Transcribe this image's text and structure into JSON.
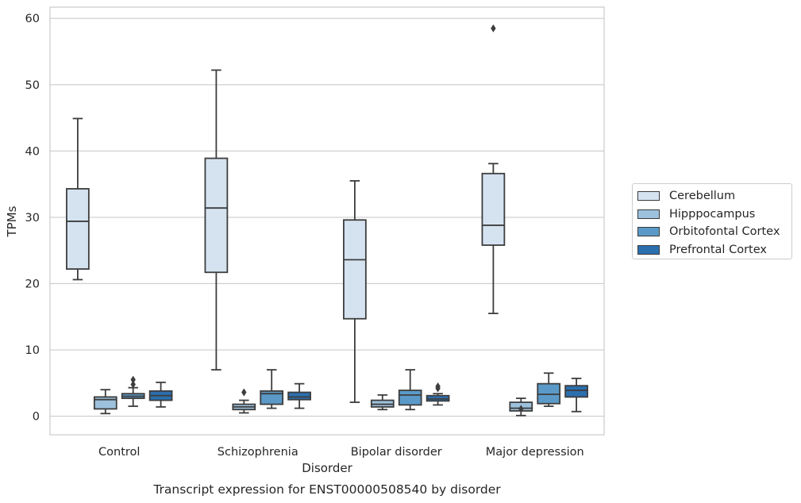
{
  "chart_data": {
    "type": "box",
    "title": "Transcript expression for ENST00000508540 by disorder",
    "xlabel": "Disorder",
    "ylabel": "TPMs",
    "ylim": [
      -2.8,
      61.7
    ],
    "yticks": [
      0,
      10,
      20,
      30,
      40,
      50,
      60
    ],
    "grid": "horizontal",
    "legend_position": "right",
    "categories": [
      "Control",
      "Schizophrenia",
      "Bipolar disorder",
      "Major depression"
    ],
    "series": [
      {
        "name": "Cerebellum",
        "color": "#d5e3f1",
        "boxes": [
          {
            "whislo": 20.6,
            "q1": 22.2,
            "med": 29.4,
            "q3": 34.3,
            "whishi": 44.9,
            "fliers": []
          },
          {
            "whislo": 7.0,
            "q1": 21.7,
            "med": 31.4,
            "q3": 38.9,
            "whishi": 52.2,
            "fliers": []
          },
          {
            "whislo": 2.1,
            "q1": 14.7,
            "med": 23.6,
            "q3": 29.6,
            "whishi": 35.5,
            "fliers": []
          },
          {
            "whislo": 15.5,
            "q1": 25.8,
            "med": 28.8,
            "q3": 36.6,
            "whishi": 38.1,
            "fliers": [
              58.5
            ]
          }
        ]
      },
      {
        "name": "Hipppocampus",
        "color": "#9dc1dd",
        "boxes": [
          {
            "whislo": 0.4,
            "q1": 1.1,
            "med": 2.5,
            "q3": 2.9,
            "whishi": 4.0,
            "fliers": []
          },
          {
            "whislo": 0.5,
            "q1": 1.0,
            "med": 1.4,
            "q3": 1.8,
            "whishi": 2.4,
            "fliers": [
              3.6
            ]
          },
          {
            "whislo": 1.0,
            "q1": 1.4,
            "med": 1.8,
            "q3": 2.4,
            "whishi": 3.2,
            "fliers": []
          },
          {
            "whislo": 0.1,
            "q1": 0.8,
            "med": 1.2,
            "q3": 2.1,
            "whishi": 2.7,
            "fliers": [
              1.1
            ]
          }
        ]
      },
      {
        "name": "Orbitofontal Cortex",
        "color": "#5b9ac8",
        "boxes": [
          {
            "whislo": 1.5,
            "q1": 2.7,
            "med": 3.0,
            "q3": 3.4,
            "whishi": 4.3,
            "fliers": [
              4.8,
              5.5
            ]
          },
          {
            "whislo": 1.2,
            "q1": 1.8,
            "med": 3.4,
            "q3": 3.8,
            "whishi": 7.0,
            "fliers": []
          },
          {
            "whislo": 1.0,
            "q1": 1.7,
            "med": 3.2,
            "q3": 3.9,
            "whishi": 7.0,
            "fliers": []
          },
          {
            "whislo": 1.5,
            "q1": 1.9,
            "med": 3.3,
            "q3": 4.9,
            "whishi": 6.5,
            "fliers": []
          }
        ]
      },
      {
        "name": "Prefrontal Cortex",
        "color": "#2c6fae",
        "boxes": [
          {
            "whislo": 1.4,
            "q1": 2.4,
            "med": 3.1,
            "q3": 3.8,
            "whishi": 5.1,
            "fliers": []
          },
          {
            "whislo": 1.2,
            "q1": 2.5,
            "med": 2.9,
            "q3": 3.6,
            "whishi": 4.9,
            "fliers": []
          },
          {
            "whislo": 1.7,
            "q1": 2.3,
            "med": 2.6,
            "q3": 3.1,
            "whishi": 3.4,
            "fliers": [
              4.2,
              4.5
            ]
          },
          {
            "whislo": 0.7,
            "q1": 2.9,
            "med": 3.9,
            "q3": 4.6,
            "whishi": 5.7,
            "fliers": []
          }
        ]
      }
    ]
  }
}
